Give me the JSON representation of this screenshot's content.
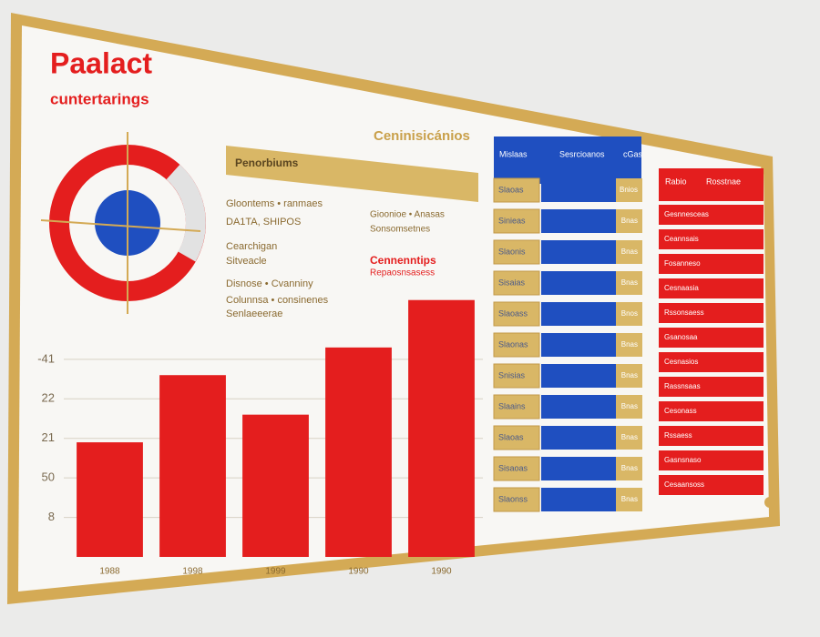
{
  "header": {
    "title": "Paalact",
    "subtitle": "cuntertarings"
  },
  "section_title": "Ceninisicánios",
  "banner": "Penorbiums",
  "left_notes": [
    "Gloontems • ranmaes",
    "DA1TA, SHIPOS",
    "Cearchigan",
    "Sitveacle",
    "Disnose • Cvanniny",
    "Colunnsa • consinenes",
    "Senlaeeerae"
  ],
  "mid_notes": [
    "Gioonioe • Anasas",
    "Sonsomsetnes",
    "Cennenntips",
    "Repaosnsasess"
  ],
  "blue_panel": {
    "headers": [
      "Mislaas",
      "Sesrcioanos",
      "cGas"
    ],
    "rows": [
      {
        "label": "Slaoas",
        "tag": "Bnios"
      },
      {
        "label": "Sinieas",
        "tag": "Bnas"
      },
      {
        "label": "Slaonis",
        "tag": "Bnas"
      },
      {
        "label": "Sisaias",
        "tag": "Bnas"
      },
      {
        "label": "Slaoass",
        "tag": "Bnos"
      },
      {
        "label": "Slaonas",
        "tag": "Bnas"
      },
      {
        "label": "Snisias",
        "tag": "Bnas"
      },
      {
        "label": "Slaains",
        "tag": "Bnas"
      },
      {
        "label": "Slaoas",
        "tag": "Bnas"
      },
      {
        "label": "Sisaoas",
        "tag": "Bnas"
      },
      {
        "label": "Slaonss",
        "tag": "Bnas"
      }
    ]
  },
  "red_panel": {
    "headers": [
      "Rabio",
      "Rosstnae"
    ],
    "rows": [
      "Gesnnesceas",
      "Ceannsais",
      "Fosanneso",
      "Cesnaasia",
      "Rssonsaess",
      "Gsanosaa",
      "Cesnasios",
      "Rassnsaas",
      "Cesonass",
      "Rssaess",
      "Gasnsnaso",
      "Cesaansoss"
    ]
  },
  "chart_data": {
    "type": "bar",
    "categories": [
      "1988",
      "1998",
      "1999",
      "1990",
      "1990"
    ],
    "values": [
      2.9,
      4.6,
      3.6,
      5.3,
      6.5
    ],
    "color": "#e41e1e",
    "ylim": [
      0,
      7
    ],
    "yticks": [
      {
        "value": 1,
        "label": "8"
      },
      {
        "value": 2,
        "label": "50"
      },
      {
        "value": 3,
        "label": "21"
      },
      {
        "value": 4,
        "label": "22"
      },
      {
        "value": 5,
        "label": "-41"
      }
    ],
    "grid": true
  }
}
